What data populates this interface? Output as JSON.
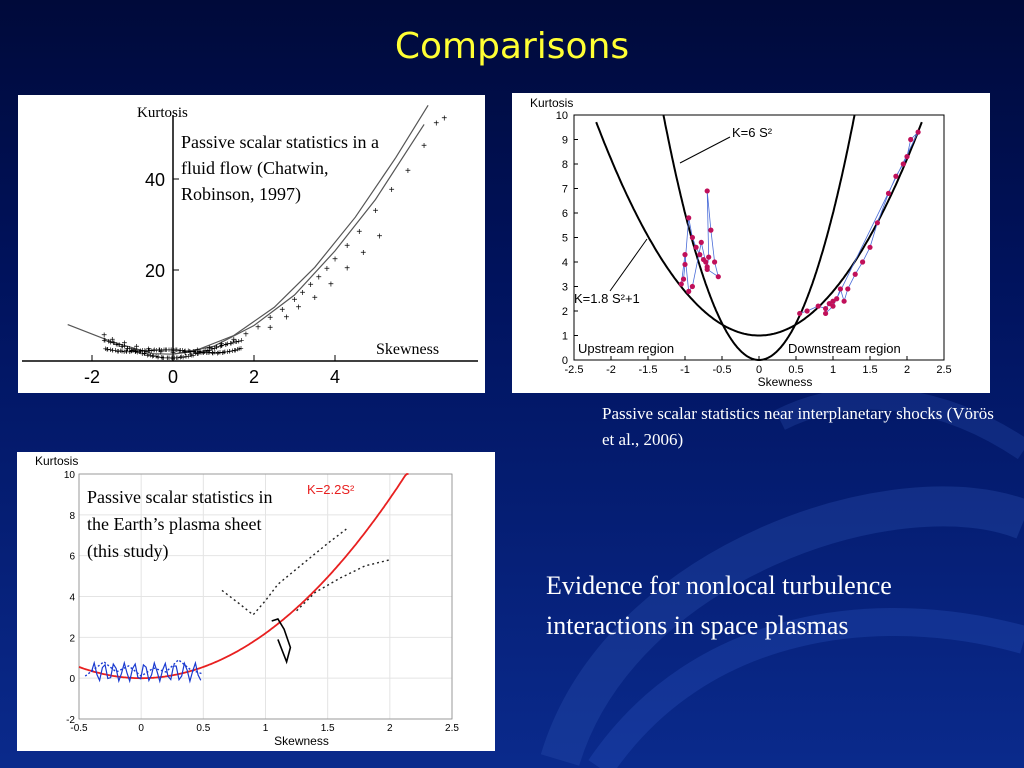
{
  "slide": {
    "title": "Comparisons",
    "evidence_text": "Evidence for nonlocal turbulence interactions in space plasmas"
  },
  "chart_data": [
    {
      "type": "scatter",
      "caption": "Passive scalar statistics in a fluid flow (Chatwin, Robinson, 1997)",
      "xlabel": "Skewness",
      "ylabel": "Kurtosis",
      "x_ticks": [
        "-2",
        "0",
        "2",
        "4"
      ],
      "y_ticks": [
        "20",
        "40"
      ],
      "xlim": [
        -2.5,
        6.8
      ],
      "ylim": [
        0,
        55
      ],
      "curves": [
        {
          "name": "lower parabola",
          "x": [
            -2.6,
            -1.5,
            -0.5,
            0,
            0.5,
            1.5,
            2.5,
            3.5,
            4.5,
            5.5,
            6.3
          ],
          "y": [
            8,
            4.2,
            1.6,
            1.5,
            2.1,
            5.6,
            11.8,
            20.6,
            31.6,
            44.7,
            56.2
          ]
        },
        {
          "name": "upper parabola",
          "x": [
            0,
            1,
            2,
            3,
            4,
            5,
            6.2
          ],
          "y": [
            1.5,
            3.2,
            7.8,
            14.5,
            24.2,
            35.5,
            52
          ]
        }
      ],
      "points": [
        {
          "x": -1.7,
          "y": 5.6
        },
        {
          "x": -1.5,
          "y": 4.6
        },
        {
          "x": -1.2,
          "y": 3.9
        },
        {
          "x": -0.9,
          "y": 3.1
        },
        {
          "x": -0.6,
          "y": 2.5
        },
        {
          "x": -0.3,
          "y": 1.9
        },
        {
          "x": 0,
          "y": 1.6
        },
        {
          "x": 0.3,
          "y": 1.8
        },
        {
          "x": 0.6,
          "y": 2.3
        },
        {
          "x": 0.9,
          "y": 2.8
        },
        {
          "x": 1.2,
          "y": 3.6
        },
        {
          "x": 1.5,
          "y": 4.6
        },
        {
          "x": 1.8,
          "y": 5.8
        },
        {
          "x": 2.1,
          "y": 7.4
        },
        {
          "x": 2.4,
          "y": 9.4
        },
        {
          "x": 2.7,
          "y": 11.2
        },
        {
          "x": 3.0,
          "y": 13.4
        },
        {
          "x": 3.2,
          "y": 15.0
        },
        {
          "x": 3.4,
          "y": 16.7
        },
        {
          "x": 3.6,
          "y": 18.4
        },
        {
          "x": 3.8,
          "y": 20.2
        },
        {
          "x": 4.0,
          "y": 22.3
        },
        {
          "x": 4.3,
          "y": 25.3
        },
        {
          "x": 4.6,
          "y": 28.4
        },
        {
          "x": 5.0,
          "y": 33.0
        },
        {
          "x": 5.4,
          "y": 37.6
        },
        {
          "x": 5.8,
          "y": 41.8
        },
        {
          "x": 6.2,
          "y": 47.3
        },
        {
          "x": 6.5,
          "y": 52.2
        },
        {
          "x": 6.7,
          "y": 53.3
        },
        {
          "x": 2.4,
          "y": 7.2
        },
        {
          "x": 2.8,
          "y": 9.6
        },
        {
          "x": 3.1,
          "y": 11.8
        },
        {
          "x": 3.5,
          "y": 13.9
        },
        {
          "x": 3.9,
          "y": 16.8
        },
        {
          "x": 4.3,
          "y": 20.3
        },
        {
          "x": 4.7,
          "y": 23.7
        },
        {
          "x": 5.1,
          "y": 27.4
        }
      ]
    },
    {
      "type": "scatter",
      "caption": "Passive scalar statistics near interplanetary shocks (Vörös et al., 2006)",
      "xlabel": "Skewness",
      "ylabel": "Kurtosis",
      "x_ticks": [
        "-2.5",
        "-2",
        "-1.5",
        "-1",
        "-0.5",
        "0",
        "0.5",
        "1",
        "1.5",
        "2",
        "2.5"
      ],
      "y_ticks": [
        "0",
        "1",
        "2",
        "3",
        "4",
        "5",
        "6",
        "7",
        "8",
        "9",
        "10"
      ],
      "xlim": [
        -2.5,
        2.5
      ],
      "ylim": [
        0,
        10
      ],
      "annotations": [
        "K=6 S²",
        "K=1.8 S²+1",
        "Upstream region",
        "Downstream region"
      ],
      "curves": [
        {
          "name": "K=6 S²",
          "formula": "6*x^2"
        },
        {
          "name": "K=1.8 S²+1",
          "formula": "1.8*x^2+1"
        }
      ],
      "series": [
        {
          "name": "upstream",
          "x": [
            -1.02,
            -1.0,
            -0.95,
            -0.9,
            -0.85,
            -0.8,
            -0.75,
            -0.72,
            -0.7,
            -0.68,
            -0.7,
            -0.65,
            -0.6,
            -0.55,
            -0.7,
            -0.78,
            -0.9,
            -0.95,
            -1.0,
            -1.05
          ],
          "y": [
            3.3,
            3.9,
            5.8,
            5.0,
            4.6,
            4.3,
            4.1,
            4.0,
            3.8,
            4.2,
            6.9,
            5.3,
            4.0,
            3.4,
            3.7,
            4.8,
            3.0,
            2.8,
            4.3,
            3.1
          ]
        },
        {
          "name": "downstream",
          "x": [
            0.55,
            0.65,
            0.8,
            0.9,
            0.95,
            1.0,
            1.05,
            1.1,
            1.15,
            1.2,
            1.3,
            1.4,
            1.5,
            1.6,
            1.75,
            1.85,
            1.95,
            2.0,
            2.05,
            2.15,
            1.0,
            0.9
          ],
          "y": [
            1.9,
            2.0,
            2.2,
            2.1,
            2.3,
            2.4,
            2.5,
            2.9,
            2.4,
            2.9,
            3.5,
            4.0,
            4.6,
            5.6,
            6.8,
            7.5,
            8.0,
            8.3,
            9.0,
            9.3,
            2.2,
            1.9
          ]
        }
      ]
    },
    {
      "type": "line",
      "caption": "Passive scalar statistics in the Earth’s plasma sheet (this study)",
      "xlabel": "Skewness",
      "ylabel": "Kurtosis",
      "x_ticks": [
        "-0.5",
        "0",
        "0.5",
        "1",
        "1.5",
        "2",
        "2.5"
      ],
      "y_ticks": [
        "-2",
        "0",
        "2",
        "4",
        "6",
        "8",
        "10"
      ],
      "xlim": [
        -0.5,
        2.5
      ],
      "ylim": [
        -2,
        10
      ],
      "annotations": [
        "K=2.2S²"
      ],
      "curves": [
        {
          "name": "K=2.2S²",
          "formula": "2.2*x^2"
        }
      ],
      "series": [
        {
          "name": "blue traces",
          "x": [
            -0.45,
            -0.3,
            -0.2,
            -0.1,
            0,
            0.1,
            0.2,
            0.3,
            0.4,
            0.5
          ],
          "y": [
            0.1,
            0.8,
            0.3,
            0.6,
            0.1,
            0.5,
            0.3,
            0.9,
            0.4,
            0.2
          ]
        },
        {
          "name": "dotted upper",
          "x": [
            0.65,
            0.8,
            0.9,
            1.0,
            1.1,
            1.3,
            1.5,
            1.65
          ],
          "y": [
            4.3,
            3.6,
            3.1,
            3.8,
            4.6,
            5.6,
            6.6,
            7.3
          ]
        },
        {
          "name": "dotted right",
          "x": [
            1.25,
            1.4,
            1.6,
            1.8,
            2.0
          ],
          "y": [
            3.3,
            4.2,
            4.9,
            5.5,
            5.8
          ]
        }
      ]
    }
  ]
}
